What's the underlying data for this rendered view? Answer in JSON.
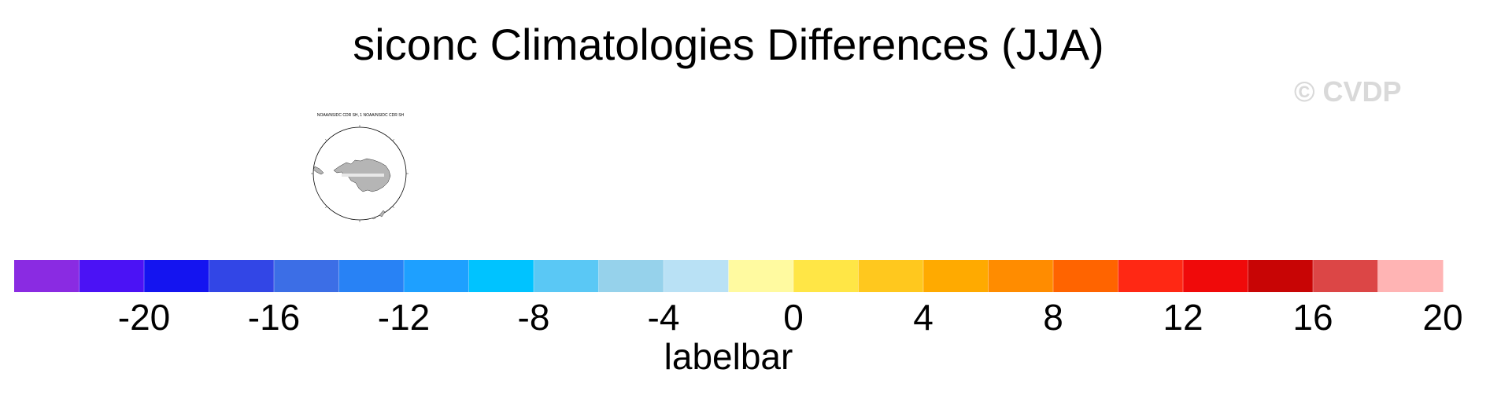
{
  "title": "siconc Climatologies Differences (JJA)",
  "watermark": "© CVDP",
  "panel": {
    "title": "NOAA/NSIDC CDR SH, 1 NOAA/NSIDC CDR SH",
    "map_type": "south polar stereographic",
    "land_color": "#b5b5b5",
    "label_strip_color": "#e8e8e8"
  },
  "labelbar": {
    "label": "labelbar",
    "colors": [
      "#8a2be2",
      "#4b12f5",
      "#1414f0",
      "#3246e6",
      "#3c6ee6",
      "#2882f5",
      "#1ea0ff",
      "#00c3ff",
      "#5ac8f5",
      "#96d2eb",
      "#b9e1f5",
      "#fffaa0",
      "#ffe646",
      "#ffc81e",
      "#ffaa00",
      "#ff8c00",
      "#ff6400",
      "#ff2814",
      "#f00a0a",
      "#c80505",
      "#dc4646",
      "#ffb4b4"
    ],
    "ticks": [
      "-20",
      "-16",
      "-12",
      "-8",
      "-4",
      "0",
      "4",
      "8",
      "12",
      "16",
      "20"
    ]
  }
}
